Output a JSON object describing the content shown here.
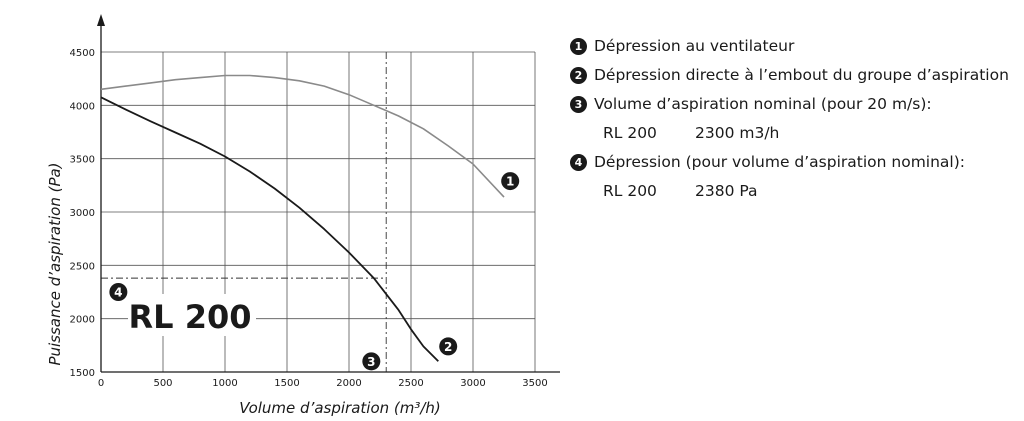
{
  "chart_data": {
    "type": "line",
    "xlabel": "Volume d’aspiration (m³/h)",
    "ylabel": "Puissance d’aspiration (Pa)",
    "xlim": [
      0,
      3500
    ],
    "ylim": [
      1500,
      4500
    ],
    "x_ticks": [
      "0",
      "500",
      "1000",
      "1500",
      "2000",
      "2500",
      "3000",
      "3500"
    ],
    "y_ticks": [
      "1500",
      "2000",
      "2500",
      "3000",
      "3500",
      "4000",
      "4500"
    ],
    "grid": true,
    "series": [
      {
        "marker": "1",
        "color": "#8a8a8a",
        "x": [
          0,
          200,
          400,
          600,
          800,
          1000,
          1200,
          1400,
          1600,
          1800,
          2000,
          2200,
          2400,
          2600,
          2800,
          3000,
          3250
        ],
        "y": [
          4150,
          4180,
          4210,
          4240,
          4260,
          4280,
          4280,
          4260,
          4230,
          4180,
          4100,
          4000,
          3900,
          3780,
          3620,
          3450,
          3140
        ]
      },
      {
        "marker": "2",
        "color": "#1a1a1a",
        "x": [
          0,
          200,
          400,
          600,
          800,
          1000,
          1200,
          1400,
          1600,
          1800,
          2000,
          2200,
          2400,
          2500,
          2600,
          2720
        ],
        "y": [
          4075,
          3960,
          3850,
          3745,
          3640,
          3520,
          3380,
          3220,
          3040,
          2840,
          2620,
          2380,
          2080,
          1900,
          1740,
          1600
        ]
      }
    ],
    "reference_lines": {
      "nominal_volume": 2300,
      "nominal_pressure": 2380
    },
    "annotations": {
      "chart_label": "RL 200",
      "markers": [
        {
          "id": "1",
          "x": 3300,
          "y": 3290
        },
        {
          "id": "2",
          "x": 2800,
          "y": 1740
        },
        {
          "id": "3",
          "x": 2180,
          "y": 1600
        },
        {
          "id": "4",
          "x": 140,
          "y": 2250
        }
      ]
    }
  },
  "legend": {
    "items": [
      {
        "num": "1",
        "text": "Dépression au ventilateur"
      },
      {
        "num": "2",
        "text": "Dépression directe à l’embout du groupe d’aspiration"
      },
      {
        "num": "3",
        "text": "Volume d’aspiration nominal (pour 20 m/s):",
        "model": "RL 200",
        "value": "2300 m3/h"
      },
      {
        "num": "4",
        "text": "Dépression (pour volume d’aspiration nominal):",
        "model": "RL 200",
        "value": "2380 Pa"
      }
    ]
  }
}
